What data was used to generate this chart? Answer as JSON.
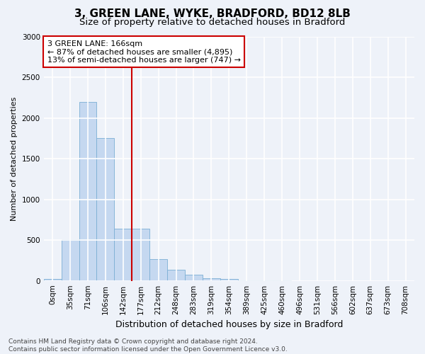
{
  "title": "3, GREEN LANE, WYKE, BRADFORD, BD12 8LB",
  "subtitle": "Size of property relative to detached houses in Bradford",
  "xlabel": "Distribution of detached houses by size in Bradford",
  "ylabel": "Number of detached properties",
  "bin_labels": [
    "0sqm",
    "35sqm",
    "71sqm",
    "106sqm",
    "142sqm",
    "177sqm",
    "212sqm",
    "248sqm",
    "283sqm",
    "319sqm",
    "354sqm",
    "389sqm",
    "425sqm",
    "460sqm",
    "496sqm",
    "531sqm",
    "566sqm",
    "602sqm",
    "637sqm",
    "673sqm",
    "708sqm"
  ],
  "bar_values": [
    20,
    510,
    2200,
    1750,
    640,
    640,
    265,
    135,
    75,
    30,
    20,
    5,
    3,
    2,
    1,
    0,
    0,
    0,
    0,
    0,
    0
  ],
  "bar_color": "#c5d8f0",
  "bar_edge_color": "#7bafd4",
  "background_color": "#eef2f9",
  "grid_color": "#ffffff",
  "vline_color": "#cc0000",
  "vline_x_index": 5,
  "ylim": [
    0,
    3000
  ],
  "yticks": [
    0,
    500,
    1000,
    1500,
    2000,
    2500,
    3000
  ],
  "annotation_text": "3 GREEN LANE: 166sqm\n← 87% of detached houses are smaller (4,895)\n13% of semi-detached houses are larger (747) →",
  "annotation_box_color": "#ffffff",
  "annotation_box_edge": "#cc0000",
  "footer_text": "Contains HM Land Registry data © Crown copyright and database right 2024.\nContains public sector information licensed under the Open Government Licence v3.0.",
  "title_fontsize": 11,
  "subtitle_fontsize": 9.5,
  "annotation_fontsize": 8,
  "footer_fontsize": 6.5,
  "tick_fontsize": 7.5,
  "ylabel_fontsize": 8,
  "xlabel_fontsize": 9
}
